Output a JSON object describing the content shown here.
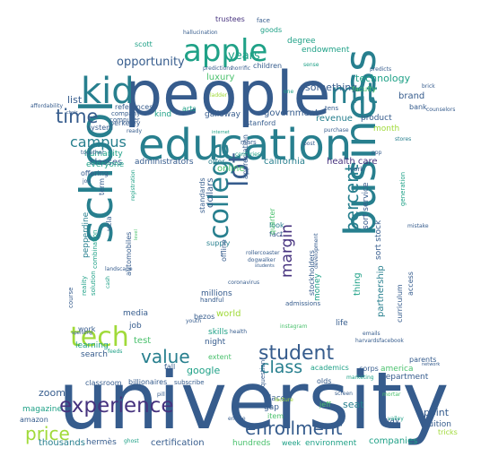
{
  "palette": [
    "#46327e",
    "#365c8d",
    "#277f8e",
    "#1fa187",
    "#4ac16d",
    "#a0da39",
    "#fde725",
    "#440154"
  ],
  "words": [
    {
      "text": "university",
      "c": 1
    },
    {
      "text": "people",
      "c": 1
    },
    {
      "text": "education",
      "c": 2
    },
    {
      "text": "school",
      "c": 2
    },
    {
      "text": "business",
      "c": 2
    },
    {
      "text": "apple",
      "c": 3
    },
    {
      "text": "kid",
      "c": 2
    },
    {
      "text": "mit",
      "c": 2
    },
    {
      "text": "tech",
      "c": 5
    },
    {
      "text": "college",
      "c": 2
    },
    {
      "text": "lot",
      "c": 1
    },
    {
      "text": "experience",
      "c": 0
    },
    {
      "text": "enrollment",
      "c": 1
    },
    {
      "text": "price",
      "c": 5
    },
    {
      "text": "student",
      "c": 1
    },
    {
      "text": "value",
      "c": 2
    },
    {
      "text": "time",
      "c": 1
    },
    {
      "text": "percent",
      "c": 2
    },
    {
      "text": "class",
      "c": 2
    },
    {
      "text": "campus",
      "c": 2
    },
    {
      "text": "margin",
      "c": 0
    },
    {
      "text": "opportunity",
      "c": 1
    },
    {
      "text": "years",
      "c": 3
    },
    {
      "text": "technology",
      "c": 3
    },
    {
      "text": "something",
      "c": 1
    },
    {
      "text": "humanity",
      "c": 3
    },
    {
      "text": "classes",
      "c": 1
    },
    {
      "text": "administrators",
      "c": 1
    },
    {
      "text": "offer",
      "c": 2
    },
    {
      "text": "california",
      "c": 2
    },
    {
      "text": "health care",
      "c": 0
    },
    {
      "text": "online",
      "c": 4
    },
    {
      "text": "dollars",
      "c": 1
    },
    {
      "text": "government",
      "c": 1
    },
    {
      "text": "revenue",
      "c": 2
    },
    {
      "text": "product",
      "c": 1
    },
    {
      "text": "brand",
      "c": 1
    },
    {
      "text": "money",
      "c": 3
    },
    {
      "text": "list",
      "c": 1
    },
    {
      "text": "references",
      "c": 1
    },
    {
      "text": "kind",
      "c": 3
    },
    {
      "text": "galloway",
      "c": 1
    },
    {
      "text": "stanford",
      "c": 1
    },
    {
      "text": "berkeley",
      "c": 1
    },
    {
      "text": "everyone",
      "c": 3
    },
    {
      "text": "offering",
      "c": 1
    },
    {
      "text": "luxury",
      "c": 4
    },
    {
      "text": "degree",
      "c": 3
    },
    {
      "text": "endowment",
      "c": 3
    },
    {
      "text": "trustees",
      "c": 0
    },
    {
      "text": "goods",
      "c": 3
    },
    {
      "text": "face",
      "c": 1
    },
    {
      "text": "children",
      "c": 1
    },
    {
      "text": "scott",
      "c": 3
    },
    {
      "text": "faculty",
      "c": 4
    },
    {
      "text": "arts",
      "c": 3
    },
    {
      "text": "thing",
      "c": 3
    },
    {
      "text": "partnership",
      "c": 2
    },
    {
      "text": "sort stock",
      "c": 1
    },
    {
      "text": "sort service",
      "c": 1
    },
    {
      "text": "access",
      "c": 1
    },
    {
      "text": "curriculum",
      "c": 1
    },
    {
      "text": "point",
      "c": 1
    },
    {
      "text": "tuition",
      "c": 1
    },
    {
      "text": "companies",
      "c": 3
    },
    {
      "text": "tricks",
      "c": 5
    },
    {
      "text": "department",
      "c": 1
    },
    {
      "text": "america",
      "c": 4
    },
    {
      "text": "parents",
      "c": 1
    },
    {
      "text": "life",
      "c": 1
    },
    {
      "text": "seat",
      "c": 2
    },
    {
      "text": "google",
      "c": 3
    },
    {
      "text": "test",
      "c": 4
    },
    {
      "text": "world",
      "c": 5
    },
    {
      "text": "night",
      "c": 1
    },
    {
      "text": "skills",
      "c": 3
    },
    {
      "text": "job",
      "c": 1
    },
    {
      "text": "media",
      "c": 1
    },
    {
      "text": "learning",
      "c": 3
    },
    {
      "text": "search",
      "c": 1
    },
    {
      "text": "zoom",
      "c": 1
    },
    {
      "text": "magazine",
      "c": 3
    },
    {
      "text": "amazon",
      "c": 1
    },
    {
      "text": "thousands",
      "c": 2
    },
    {
      "text": "hermès",
      "c": 1
    },
    {
      "text": "certification",
      "c": 1
    },
    {
      "text": "hundreds",
      "c": 4
    },
    {
      "text": "week",
      "c": 3
    },
    {
      "text": "environment",
      "c": 3
    },
    {
      "text": "millions",
      "c": 1
    },
    {
      "text": "supply",
      "c": 2
    },
    {
      "text": "standards",
      "c": 1
    },
    {
      "text": "offline",
      "c": 1
    },
    {
      "text": "appreciation",
      "c": 1
    },
    {
      "text": "look",
      "c": 2
    },
    {
      "text": "fact",
      "c": 1
    },
    {
      "text": "quarter",
      "c": 4
    },
    {
      "text": "admissions",
      "c": 1
    },
    {
      "text": "pepperdine",
      "c": 2
    },
    {
      "text": "ucla",
      "c": 1
    },
    {
      "text": "automobiles",
      "c": 1
    },
    {
      "text": "term",
      "c": 1
    },
    {
      "text": "reality",
      "c": 3
    },
    {
      "text": "solution",
      "c": 3
    },
    {
      "text": "combination",
      "c": 3
    },
    {
      "text": "work",
      "c": 1
    },
    {
      "text": "course",
      "c": 1
    },
    {
      "text": "stockholders",
      "c": 1
    },
    {
      "text": "fall",
      "c": 1
    },
    {
      "text": "bezos",
      "c": 1
    },
    {
      "text": "extent",
      "c": 4
    },
    {
      "text": "classroom",
      "c": 1
    },
    {
      "text": "billionaires",
      "c": 1
    },
    {
      "text": "subscribe",
      "c": 1
    },
    {
      "text": "place",
      "c": 1
    },
    {
      "text": "gap",
      "c": 1
    },
    {
      "text": "item",
      "c": 4
    },
    {
      "text": "jeff",
      "c": 4
    },
    {
      "text": "olds",
      "c": 1
    },
    {
      "text": "way",
      "c": 1
    },
    {
      "text": "academics",
      "c": 3
    },
    {
      "text": "corps",
      "c": 1
    },
    {
      "text": "york",
      "c": 1
    },
    {
      "text": "generation",
      "c": 3
    },
    {
      "text": "month",
      "c": 5
    },
    {
      "text": "system",
      "c": 1
    },
    {
      "text": "company",
      "c": 1
    },
    {
      "text": "computer",
      "c": 1
    },
    {
      "text": "bank",
      "c": 1
    },
    {
      "text": "tens",
      "c": 1
    },
    {
      "text": "stores",
      "c": 2
    },
    {
      "text": "predicts",
      "c": 1
    },
    {
      "text": "hallucination",
      "c": 1
    },
    {
      "text": "affordability",
      "c": 1
    },
    {
      "text": "brick",
      "c": 1
    },
    {
      "text": "counselors",
      "c": 1
    },
    {
      "text": "ready",
      "c": 1
    },
    {
      "text": "mars",
      "c": 1
    },
    {
      "text": "sense",
      "c": 3
    },
    {
      "text": "post",
      "c": 1
    },
    {
      "text": "handful",
      "c": 1
    },
    {
      "text": "coronavirus",
      "c": 1
    },
    {
      "text": "youth",
      "c": 1
    },
    {
      "text": "question",
      "c": 1
    },
    {
      "text": "screen",
      "c": 1
    },
    {
      "text": "marketing",
      "c": 3
    },
    {
      "text": "mortar",
      "c": 4
    },
    {
      "text": "valley",
      "c": 3
    },
    {
      "text": "entrée",
      "c": 1
    },
    {
      "text": "ghost",
      "c": 3
    },
    {
      "text": "internet",
      "c": 3
    },
    {
      "text": "harvardsfacebook",
      "c": 1
    },
    {
      "text": "together",
      "c": 1
    },
    {
      "text": "joe",
      "c": 1
    },
    {
      "text": "landscape",
      "c": 1
    },
    {
      "text": "cash",
      "c": 3
    },
    {
      "text": "health",
      "c": 1
    },
    {
      "text": "spending",
      "c": 1
    },
    {
      "text": "feeds",
      "c": 3
    },
    {
      "text": "registration",
      "c": 3
    },
    {
      "text": "development",
      "c": 1
    },
    {
      "text": "network",
      "c": 1
    },
    {
      "text": "chair",
      "c": 1
    },
    {
      "text": "ppp",
      "c": 1
    },
    {
      "text": "centuries",
      "c": 3
    },
    {
      "text": "predictions",
      "c": 1
    },
    {
      "text": "horrific",
      "c": 1
    },
    {
      "text": "instagram",
      "c": 4
    },
    {
      "text": "purchase",
      "c": 1
    },
    {
      "text": "level",
      "c": 4
    },
    {
      "text": "rollercoaster",
      "c": 1
    },
    {
      "text": "dogwalker",
      "c": 1
    },
    {
      "text": "students",
      "c": 1
    },
    {
      "text": "mistake",
      "c": 1
    },
    {
      "text": "one",
      "c": 3
    },
    {
      "text": "lecture",
      "c": 5
    },
    {
      "text": "pill",
      "c": 1
    },
    {
      "text": "ladder",
      "c": 5
    },
    {
      "text": "emails",
      "c": 1
    }
  ]
}
